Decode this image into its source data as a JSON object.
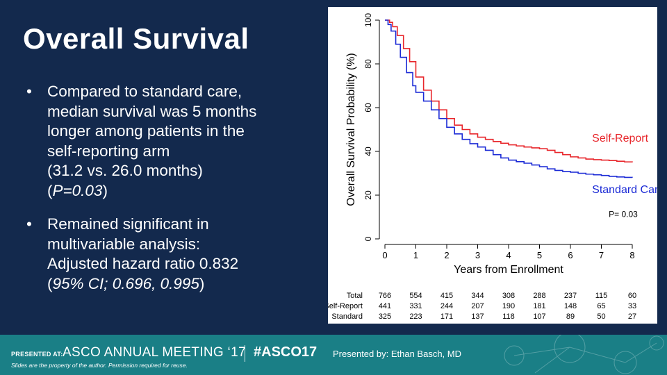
{
  "slide": {
    "title": "Overall Survival",
    "bullets": [
      {
        "lines": [
          {
            "text": "Compared to standard care,"
          },
          {
            "text": "median survival was 5 months"
          },
          {
            "text": "longer among patients in the"
          },
          {
            "text": "self-reporting arm"
          },
          {
            "text": "(31.2 vs. 26.0 months)"
          },
          {
            "pre": "(",
            "italic": "P=0.03",
            "post": ")"
          }
        ]
      },
      {
        "lines": [
          {
            "text": "Remained significant in"
          },
          {
            "text": "multivariable analysis:"
          },
          {
            "text": "Adjusted hazard ratio 0.832"
          },
          {
            "pre": "(",
            "italic": "95% CI; 0.696, 0.995",
            "post": ")"
          }
        ]
      }
    ],
    "bullet_glyph": "•"
  },
  "footer": {
    "presented_at": "PRESENTED AT:",
    "meeting": "ASCO ANNUAL MEETING ‘17",
    "hashtag": "#ASCO17",
    "presenter": "Presented by: Ethan Basch, MD",
    "disclaimer": "Slides are the property of the author. Permission required for reuse."
  },
  "chart_data": {
    "type": "line",
    "subtype": "kaplan-meier",
    "xlabel": "Years from Enrollment",
    "ylabel": "Overall Survival Probability (%)",
    "xlim": [
      0,
      8
    ],
    "ylim": [
      0,
      100
    ],
    "xticks": [
      0,
      1,
      2,
      3,
      4,
      5,
      6,
      7,
      8
    ],
    "yticks": [
      0,
      20,
      40,
      60,
      80,
      100
    ],
    "annotation": "P= 0.03",
    "grid": false,
    "series": [
      {
        "name": "Self-Report",
        "color": "#e8262b",
        "x": [
          0,
          0.15,
          0.25,
          0.4,
          0.6,
          0.8,
          1.0,
          1.25,
          1.5,
          1.75,
          2.0,
          2.25,
          2.5,
          2.75,
          3.0,
          3.25,
          3.5,
          3.75,
          4.0,
          4.25,
          4.5,
          4.75,
          5.0,
          5.25,
          5.5,
          5.75,
          6.0,
          6.25,
          6.5,
          6.75,
          7.0,
          7.25,
          7.5,
          7.75,
          8.0
        ],
        "y": [
          100,
          99,
          97,
          93,
          87,
          81,
          74,
          68,
          63,
          59,
          55,
          52,
          50,
          48,
          46.5,
          45.5,
          44.5,
          43.7,
          43,
          42.5,
          42,
          41.6,
          41.2,
          40.5,
          39.5,
          38.5,
          37.5,
          37,
          36.5,
          36.2,
          36,
          35.8,
          35.5,
          35.2,
          35
        ]
      },
      {
        "name": "Standard Care",
        "color": "#1c2bd6",
        "x": [
          0,
          0.1,
          0.2,
          0.35,
          0.5,
          0.7,
          0.9,
          1.0,
          1.25,
          1.5,
          1.75,
          2.0,
          2.25,
          2.5,
          2.75,
          3.0,
          3.25,
          3.5,
          3.75,
          4.0,
          4.25,
          4.5,
          4.75,
          5.0,
          5.25,
          5.5,
          5.75,
          6.0,
          6.25,
          6.5,
          6.75,
          7.0,
          7.25,
          7.5,
          7.75,
          8.0
        ],
        "y": [
          100,
          98,
          95,
          89,
          83,
          76,
          70,
          67,
          63,
          59,
          55,
          51,
          48,
          45.5,
          43.5,
          42,
          40.5,
          38.5,
          37,
          36,
          35.3,
          34.6,
          33.8,
          33,
          32,
          31.3,
          30.8,
          30.5,
          30,
          29.6,
          29.3,
          29,
          28.6,
          28.3,
          28.1,
          28
        ]
      }
    ],
    "series_labels": [
      {
        "text": "Self-Report",
        "x": 6.7,
        "y": 44.5,
        "color": "#e8262b"
      },
      {
        "text": "Standard Care",
        "x": 6.7,
        "y": 21,
        "color": "#1c2bd6"
      }
    ],
    "annotation_pos": {
      "x": 6.7,
      "y": 10
    },
    "risk_table": {
      "times": [
        0,
        1,
        2,
        3,
        4,
        5,
        6,
        7,
        8
      ],
      "rows": [
        {
          "label": "Total",
          "values": [
            766,
            554,
            415,
            344,
            308,
            288,
            237,
            115,
            60
          ]
        },
        {
          "label": "Self-Report",
          "values": [
            441,
            331,
            244,
            207,
            190,
            181,
            148,
            65,
            33
          ]
        },
        {
          "label": "Standard",
          "values": [
            325,
            223,
            171,
            137,
            118,
            107,
            89,
            50,
            27
          ]
        }
      ]
    }
  }
}
